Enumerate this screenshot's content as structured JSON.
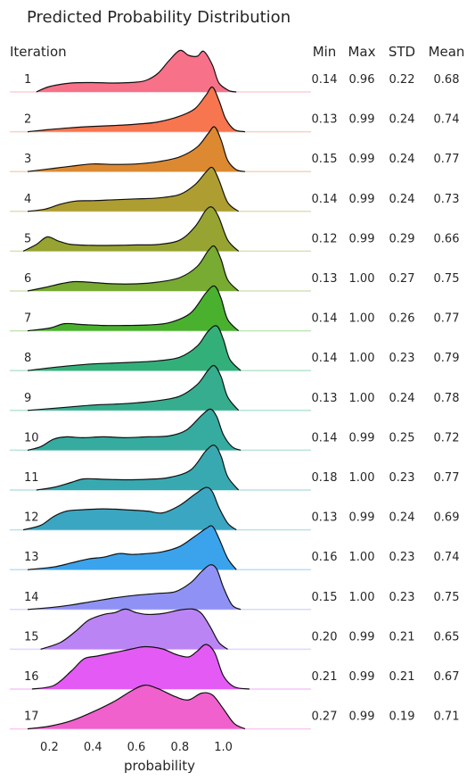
{
  "chart_data": {
    "type": "area",
    "title": "Predicted Probability Distribution",
    "xlabel": "probability",
    "xlim": [
      0.0,
      1.25
    ],
    "x_ticks": [
      "0.2",
      "0.4",
      "0.6",
      "0.8",
      "1.0"
    ],
    "x_tick_values": [
      0.2,
      0.4,
      0.6,
      0.8,
      1.0
    ],
    "grid": false,
    "columns": {
      "iteration": "Iteration",
      "min": "Min",
      "max": "Max",
      "std": "STD",
      "mean": "Mean"
    },
    "series": [
      {
        "iteration": "1",
        "min": "0.14",
        "max": "0.96",
        "std": "0.22",
        "mean": "0.68",
        "color": "#f77189",
        "density": [
          [
            0.14,
            0.0
          ],
          [
            0.2,
            0.12
          ],
          [
            0.3,
            0.2
          ],
          [
            0.4,
            0.21
          ],
          [
            0.5,
            0.2
          ],
          [
            0.6,
            0.22
          ],
          [
            0.65,
            0.27
          ],
          [
            0.7,
            0.42
          ],
          [
            0.75,
            0.7
          ],
          [
            0.8,
            0.93
          ],
          [
            0.84,
            0.82
          ],
          [
            0.88,
            0.8
          ],
          [
            0.91,
            0.91
          ],
          [
            0.95,
            0.6
          ],
          [
            0.98,
            0.2
          ],
          [
            1.03,
            0.02
          ],
          [
            1.06,
            0.0
          ]
        ]
      },
      {
        "iteration": "2",
        "min": "0.13",
        "max": "0.99",
        "std": "0.24",
        "mean": "0.74",
        "color": "#f7754f",
        "density": [
          [
            0.1,
            0.0
          ],
          [
            0.2,
            0.05
          ],
          [
            0.3,
            0.09
          ],
          [
            0.4,
            0.12
          ],
          [
            0.5,
            0.14
          ],
          [
            0.6,
            0.17
          ],
          [
            0.7,
            0.22
          ],
          [
            0.8,
            0.35
          ],
          [
            0.87,
            0.52
          ],
          [
            0.92,
            0.82
          ],
          [
            0.95,
            1.0
          ],
          [
            0.98,
            0.7
          ],
          [
            1.01,
            0.3
          ],
          [
            1.05,
            0.05
          ],
          [
            1.1,
            0.0
          ]
        ]
      },
      {
        "iteration": "3",
        "min": "0.15",
        "max": "0.99",
        "std": "0.24",
        "mean": "0.77",
        "color": "#dc8932",
        "density": [
          [
            0.1,
            0.0
          ],
          [
            0.2,
            0.06
          ],
          [
            0.3,
            0.12
          ],
          [
            0.4,
            0.17
          ],
          [
            0.5,
            0.16
          ],
          [
            0.6,
            0.17
          ],
          [
            0.7,
            0.22
          ],
          [
            0.8,
            0.33
          ],
          [
            0.88,
            0.55
          ],
          [
            0.93,
            0.85
          ],
          [
            0.96,
            1.0
          ],
          [
            0.99,
            0.7
          ],
          [
            1.02,
            0.25
          ],
          [
            1.06,
            0.04
          ],
          [
            1.1,
            0.0
          ]
        ]
      },
      {
        "iteration": "4",
        "min": "0.14",
        "max": "0.99",
        "std": "0.24",
        "mean": "0.73",
        "color": "#ae9d31",
        "density": [
          [
            0.1,
            0.0
          ],
          [
            0.18,
            0.05
          ],
          [
            0.25,
            0.16
          ],
          [
            0.32,
            0.23
          ],
          [
            0.4,
            0.24
          ],
          [
            0.5,
            0.26
          ],
          [
            0.6,
            0.28
          ],
          [
            0.7,
            0.3
          ],
          [
            0.8,
            0.38
          ],
          [
            0.87,
            0.6
          ],
          [
            0.92,
            0.88
          ],
          [
            0.95,
            0.98
          ],
          [
            0.98,
            0.7
          ],
          [
            1.02,
            0.2
          ],
          [
            1.07,
            0.0
          ]
        ]
      },
      {
        "iteration": "5",
        "min": "0.12",
        "max": "0.99",
        "std": "0.29",
        "mean": "0.66",
        "color": "#97a431",
        "density": [
          [
            0.08,
            0.0
          ],
          [
            0.14,
            0.15
          ],
          [
            0.19,
            0.32
          ],
          [
            0.24,
            0.23
          ],
          [
            0.3,
            0.15
          ],
          [
            0.4,
            0.13
          ],
          [
            0.5,
            0.13
          ],
          [
            0.6,
            0.14
          ],
          [
            0.7,
            0.15
          ],
          [
            0.8,
            0.25
          ],
          [
            0.87,
            0.55
          ],
          [
            0.92,
            0.92
          ],
          [
            0.95,
            0.98
          ],
          [
            0.98,
            0.75
          ],
          [
            1.02,
            0.25
          ],
          [
            1.07,
            0.0
          ]
        ]
      },
      {
        "iteration": "6",
        "min": "0.13",
        "max": "1.00",
        "std": "0.27",
        "mean": "0.75",
        "color": "#77ab31",
        "density": [
          [
            0.1,
            0.0
          ],
          [
            0.18,
            0.08
          ],
          [
            0.26,
            0.17
          ],
          [
            0.32,
            0.21
          ],
          [
            0.4,
            0.19
          ],
          [
            0.5,
            0.16
          ],
          [
            0.6,
            0.16
          ],
          [
            0.7,
            0.2
          ],
          [
            0.8,
            0.3
          ],
          [
            0.88,
            0.55
          ],
          [
            0.93,
            0.9
          ],
          [
            0.96,
            1.0
          ],
          [
            0.99,
            0.7
          ],
          [
            1.02,
            0.25
          ],
          [
            1.07,
            0.0
          ]
        ]
      },
      {
        "iteration": "7",
        "min": "0.14",
        "max": "1.00",
        "std": "0.26",
        "mean": "0.77",
        "color": "#4ab12f",
        "density": [
          [
            0.1,
            0.0
          ],
          [
            0.2,
            0.06
          ],
          [
            0.27,
            0.16
          ],
          [
            0.35,
            0.14
          ],
          [
            0.45,
            0.12
          ],
          [
            0.55,
            0.12
          ],
          [
            0.65,
            0.13
          ],
          [
            0.75,
            0.18
          ],
          [
            0.85,
            0.4
          ],
          [
            0.92,
            0.85
          ],
          [
            0.96,
            1.0
          ],
          [
            0.99,
            0.72
          ],
          [
            1.02,
            0.25
          ],
          [
            1.07,
            0.0
          ]
        ]
      },
      {
        "iteration": "8",
        "min": "0.14",
        "max": "1.00",
        "std": "0.23",
        "mean": "0.79",
        "color": "#33b07a",
        "density": [
          [
            0.1,
            0.0
          ],
          [
            0.2,
            0.06
          ],
          [
            0.3,
            0.11
          ],
          [
            0.4,
            0.15
          ],
          [
            0.5,
            0.17
          ],
          [
            0.6,
            0.19
          ],
          [
            0.7,
            0.22
          ],
          [
            0.8,
            0.3
          ],
          [
            0.88,
            0.55
          ],
          [
            0.93,
            0.88
          ],
          [
            0.97,
            1.0
          ],
          [
            1.0,
            0.7
          ],
          [
            1.03,
            0.25
          ],
          [
            1.08,
            0.0
          ]
        ]
      },
      {
        "iteration": "9",
        "min": "0.13",
        "max": "1.00",
        "std": "0.24",
        "mean": "0.78",
        "color": "#35ad8e",
        "density": [
          [
            0.1,
            0.0
          ],
          [
            0.2,
            0.04
          ],
          [
            0.3,
            0.08
          ],
          [
            0.4,
            0.12
          ],
          [
            0.5,
            0.14
          ],
          [
            0.6,
            0.17
          ],
          [
            0.7,
            0.22
          ],
          [
            0.8,
            0.32
          ],
          [
            0.88,
            0.58
          ],
          [
            0.93,
            0.9
          ],
          [
            0.96,
            1.0
          ],
          [
            0.99,
            0.75
          ],
          [
            1.02,
            0.3
          ],
          [
            1.07,
            0.0
          ]
        ]
      },
      {
        "iteration": "10",
        "min": "0.14",
        "max": "0.99",
        "std": "0.25",
        "mean": "0.72",
        "color": "#36aba0",
        "density": [
          [
            0.1,
            0.0
          ],
          [
            0.16,
            0.08
          ],
          [
            0.22,
            0.25
          ],
          [
            0.28,
            0.3
          ],
          [
            0.35,
            0.28
          ],
          [
            0.45,
            0.3
          ],
          [
            0.55,
            0.28
          ],
          [
            0.65,
            0.3
          ],
          [
            0.75,
            0.32
          ],
          [
            0.83,
            0.45
          ],
          [
            0.9,
            0.78
          ],
          [
            0.94,
            0.92
          ],
          [
            0.97,
            0.75
          ],
          [
            1.0,
            0.35
          ],
          [
            1.04,
            0.08
          ],
          [
            1.08,
            0.0
          ]
        ]
      },
      {
        "iteration": "11",
        "min": "0.18",
        "max": "1.00",
        "std": "0.23",
        "mean": "0.77",
        "color": "#38a9b0",
        "density": [
          [
            0.14,
            0.0
          ],
          [
            0.22,
            0.06
          ],
          [
            0.3,
            0.17
          ],
          [
            0.36,
            0.25
          ],
          [
            0.45,
            0.24
          ],
          [
            0.55,
            0.23
          ],
          [
            0.65,
            0.24
          ],
          [
            0.75,
            0.28
          ],
          [
            0.85,
            0.45
          ],
          [
            0.92,
            0.88
          ],
          [
            0.96,
            1.0
          ],
          [
            0.99,
            0.75
          ],
          [
            1.02,
            0.3
          ],
          [
            1.07,
            0.0
          ]
        ]
      },
      {
        "iteration": "12",
        "min": "0.13",
        "max": "0.99",
        "std": "0.24",
        "mean": "0.69",
        "color": "#3aa6c1",
        "density": [
          [
            0.08,
            0.0
          ],
          [
            0.16,
            0.1
          ],
          [
            0.22,
            0.3
          ],
          [
            0.28,
            0.42
          ],
          [
            0.35,
            0.45
          ],
          [
            0.45,
            0.47
          ],
          [
            0.55,
            0.45
          ],
          [
            0.65,
            0.42
          ],
          [
            0.72,
            0.38
          ],
          [
            0.8,
            0.55
          ],
          [
            0.87,
            0.8
          ],
          [
            0.92,
            0.95
          ],
          [
            0.95,
            0.85
          ],
          [
            0.98,
            0.5
          ],
          [
            1.02,
            0.15
          ],
          [
            1.06,
            0.0
          ]
        ]
      },
      {
        "iteration": "13",
        "min": "0.16",
        "max": "1.00",
        "std": "0.23",
        "mean": "0.74",
        "color": "#3ba3ec",
        "density": [
          [
            0.1,
            0.0
          ],
          [
            0.22,
            0.06
          ],
          [
            0.3,
            0.15
          ],
          [
            0.38,
            0.24
          ],
          [
            0.45,
            0.28
          ],
          [
            0.52,
            0.36
          ],
          [
            0.58,
            0.34
          ],
          [
            0.65,
            0.36
          ],
          [
            0.72,
            0.4
          ],
          [
            0.8,
            0.52
          ],
          [
            0.87,
            0.75
          ],
          [
            0.92,
            0.92
          ],
          [
            0.95,
            0.97
          ],
          [
            0.98,
            0.7
          ],
          [
            1.02,
            0.25
          ],
          [
            1.06,
            0.0
          ]
        ]
      },
      {
        "iteration": "14",
        "min": "0.15",
        "max": "1.00",
        "std": "0.23",
        "mean": "0.75",
        "color": "#8f92f4",
        "density": [
          [
            0.1,
            0.0
          ],
          [
            0.2,
            0.04
          ],
          [
            0.3,
            0.1
          ],
          [
            0.4,
            0.18
          ],
          [
            0.5,
            0.26
          ],
          [
            0.6,
            0.32
          ],
          [
            0.7,
            0.36
          ],
          [
            0.78,
            0.4
          ],
          [
            0.85,
            0.6
          ],
          [
            0.9,
            0.85
          ],
          [
            0.94,
            1.0
          ],
          [
            0.97,
            0.9
          ],
          [
            1.0,
            0.5
          ],
          [
            1.04,
            0.1
          ],
          [
            1.08,
            0.0
          ]
        ]
      },
      {
        "iteration": "15",
        "min": "0.20",
        "max": "0.99",
        "std": "0.21",
        "mean": "0.65",
        "color": "#bb84f4",
        "density": [
          [
            0.16,
            0.0
          ],
          [
            0.25,
            0.15
          ],
          [
            0.32,
            0.4
          ],
          [
            0.38,
            0.65
          ],
          [
            0.45,
            0.78
          ],
          [
            0.5,
            0.82
          ],
          [
            0.55,
            0.9
          ],
          [
            0.6,
            0.82
          ],
          [
            0.65,
            0.78
          ],
          [
            0.72,
            0.8
          ],
          [
            0.8,
            0.88
          ],
          [
            0.86,
            0.9
          ],
          [
            0.9,
            0.8
          ],
          [
            0.94,
            0.5
          ],
          [
            0.98,
            0.15
          ],
          [
            1.02,
            0.0
          ]
        ]
      },
      {
        "iteration": "16",
        "min": "0.21",
        "max": "0.99",
        "std": "0.21",
        "mean": "0.67",
        "color": "#e35bf4",
        "density": [
          [
            0.12,
            0.0
          ],
          [
            0.22,
            0.08
          ],
          [
            0.3,
            0.4
          ],
          [
            0.36,
            0.68
          ],
          [
            0.42,
            0.74
          ],
          [
            0.5,
            0.82
          ],
          [
            0.58,
            0.9
          ],
          [
            0.64,
            0.95
          ],
          [
            0.72,
            0.9
          ],
          [
            0.78,
            0.78
          ],
          [
            0.84,
            0.72
          ],
          [
            0.88,
            0.85
          ],
          [
            0.92,
            1.0
          ],
          [
            0.96,
            0.82
          ],
          [
            1.0,
            0.3
          ],
          [
            1.05,
            0.05
          ],
          [
            1.12,
            0.0
          ]
        ]
      },
      {
        "iteration": "17",
        "min": "0.27",
        "max": "0.99",
        "std": "0.19",
        "mean": "0.71",
        "color": "#f061ce",
        "density": [
          [
            0.1,
            0.0
          ],
          [
            0.2,
            0.06
          ],
          [
            0.3,
            0.18
          ],
          [
            0.4,
            0.38
          ],
          [
            0.5,
            0.62
          ],
          [
            0.58,
            0.86
          ],
          [
            0.64,
            0.98
          ],
          [
            0.7,
            0.9
          ],
          [
            0.78,
            0.72
          ],
          [
            0.84,
            0.65
          ],
          [
            0.9,
            0.8
          ],
          [
            0.95,
            0.76
          ],
          [
            1.0,
            0.45
          ],
          [
            1.05,
            0.12
          ],
          [
            1.1,
            0.0
          ]
        ]
      }
    ]
  }
}
